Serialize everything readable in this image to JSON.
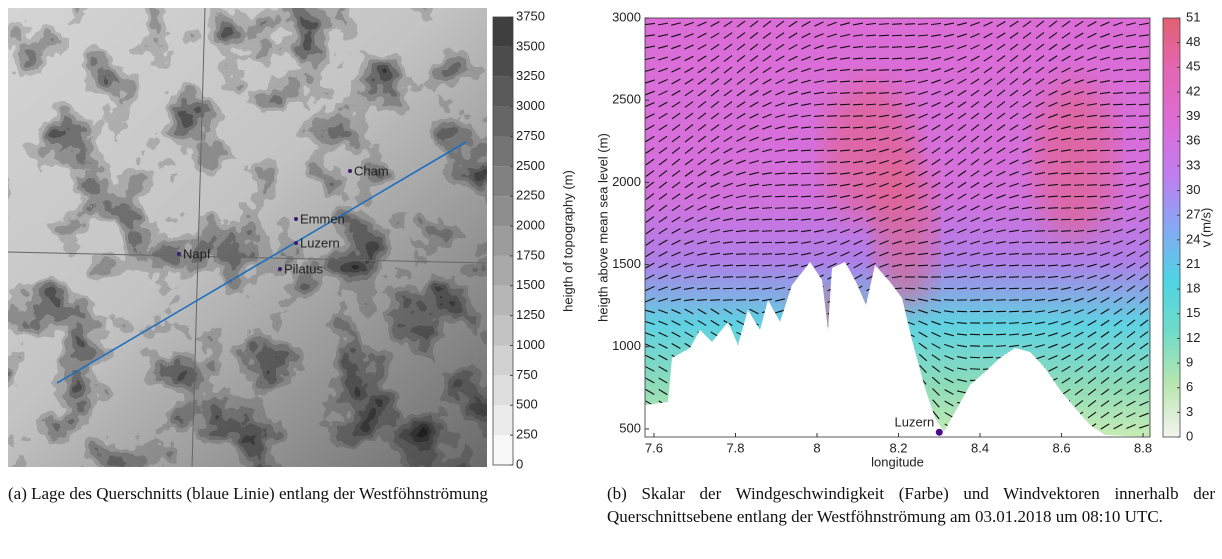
{
  "chart_data": [
    {
      "type": "map",
      "colorbar_label": "heigth of topography (m)",
      "clim": [
        0,
        3750
      ],
      "cticks": [
        0,
        250,
        500,
        750,
        1000,
        1250,
        1500,
        1750,
        2000,
        2250,
        2500,
        2750,
        3000,
        3250,
        3500,
        3750
      ],
      "colormap": [
        "#ffffff",
        "#383838"
      ],
      "stations": [
        "Cham",
        "Emmen",
        "Luzern",
        "Napf",
        "Pilatus"
      ],
      "station_color": "#3b1a6e",
      "line_color": "#1f6fbf"
    },
    {
      "type": "field",
      "xlabel": "longitude",
      "ylabel": "heigth above mean sea level (m)",
      "xlim": [
        7.578,
        8.817
      ],
      "xticks": [
        7.6,
        7.8,
        8,
        8.2,
        8.4,
        8.6,
        8.8
      ],
      "ylim": [
        451,
        3000
      ],
      "yticks": [
        500,
        1000,
        1500,
        2000,
        2500,
        3000
      ],
      "colorbar_label": "v (m/s)",
      "clim": [
        0,
        51
      ],
      "cticks": [
        0,
        3,
        6,
        9,
        12,
        15,
        18,
        21,
        24,
        27,
        30,
        33,
        36,
        39,
        42,
        45,
        48,
        51
      ],
      "colormap": [
        "#f4f4f0",
        "#b9e6b0",
        "#6fdcc8",
        "#4ed4e4",
        "#86a8f4",
        "#c07ef0",
        "#dc6cd6",
        "#e466b4",
        "#e26070"
      ],
      "marker": {
        "label": "Luzern",
        "x": 8.3,
        "y": 480,
        "color": "#4b0a8a"
      }
    }
  ],
  "captions": [
    "(a) Lage des Querschnitts (blaue Linie) entlang der Westföhnströmung",
    "(b) Skalar der Windgeschwindigkeit (Farbe) und Windvektoren innerhalb der Querschnittsebene entlang der Westföhnströmung am 03.01.2018 um 08:10 UTC."
  ]
}
